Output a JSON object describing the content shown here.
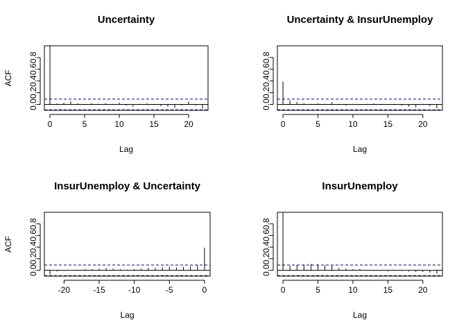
{
  "chart_data": [
    {
      "type": "bar",
      "title": "Uncertainty",
      "xlabel": "Lag",
      "ylabel": "ACF",
      "x": [
        0,
        1,
        2,
        3,
        4,
        5,
        6,
        7,
        8,
        9,
        10,
        11,
        12,
        13,
        14,
        15,
        16,
        17,
        18,
        19,
        20,
        21,
        22
      ],
      "values": [
        1.0,
        0.02,
        0.03,
        0.05,
        0.02,
        -0.01,
        0.02,
        0.01,
        0.02,
        0.01,
        0.03,
        -0.02,
        -0.04,
        0.01,
        0.02,
        -0.01,
        -0.03,
        -0.04,
        -0.06,
        -0.02,
        0.05,
        -0.02,
        -0.07
      ],
      "ci": [
        -0.091,
        0.091
      ],
      "xlim": [
        -0.8,
        22.8
      ],
      "ylim": [
        -0.1,
        1.0
      ],
      "xticks": [
        0,
        5,
        10,
        15,
        20
      ],
      "yticks": [
        "0.0",
        "0.2",
        "0.4",
        "0.6",
        "0.8"
      ]
    },
    {
      "type": "bar",
      "title": "Uncertainty & InsurUnemploy",
      "xlabel": "Lag",
      "ylabel": "",
      "x": [
        0,
        1,
        2,
        3,
        4,
        5,
        6,
        7,
        8,
        9,
        10,
        11,
        12,
        13,
        14,
        15,
        16,
        17,
        18,
        19,
        20,
        21,
        22
      ],
      "values": [
        0.39,
        0.07,
        0.04,
        0.02,
        0.01,
        0.02,
        0.01,
        0.04,
        -0.01,
        -0.02,
        0.01,
        -0.01,
        0.01,
        0.02,
        -0.01,
        0.0,
        -0.01,
        -0.02,
        -0.04,
        -0.05,
        0.01,
        -0.03,
        -0.07
      ],
      "ci": [
        -0.091,
        0.091
      ],
      "xlim": [
        -0.8,
        22.8
      ],
      "ylim": [
        -0.1,
        1.0
      ],
      "xticks": [
        0,
        5,
        10,
        15,
        20
      ],
      "yticks": [
        "0.0",
        "0.2",
        "0.4",
        "0.6",
        "0.8"
      ]
    },
    {
      "type": "bar",
      "title": "InsurUnemploy & Uncertainty",
      "xlabel": "Lag",
      "ylabel": "ACF",
      "x": [
        -22,
        -21,
        -20,
        -19,
        -18,
        -17,
        -16,
        -15,
        -14,
        -13,
        -12,
        -11,
        -10,
        -9,
        -8,
        -7,
        -6,
        -5,
        -4,
        -3,
        -2,
        -1,
        0
      ],
      "values": [
        -0.07,
        -0.02,
        -0.01,
        0.0,
        0.01,
        0.02,
        0.02,
        0.03,
        0.04,
        0.03,
        0.02,
        0.01,
        0.02,
        0.03,
        0.04,
        0.04,
        0.05,
        0.06,
        0.05,
        0.06,
        0.07,
        0.09,
        0.39
      ],
      "ci": [
        -0.091,
        0.091
      ],
      "xlim": [
        -22.8,
        0.8
      ],
      "ylim": [
        -0.1,
        1.0
      ],
      "xticks": [
        -20,
        -15,
        -10,
        -5,
        0
      ],
      "yticks": [
        "0.0",
        "0.2",
        "0.4",
        "0.6",
        "0.8"
      ]
    },
    {
      "type": "bar",
      "title": "InsurUnemploy",
      "xlabel": "Lag",
      "ylabel": "",
      "x": [
        0,
        1,
        2,
        3,
        4,
        5,
        6,
        7,
        8,
        9,
        10,
        11,
        12,
        13,
        14,
        15,
        16,
        17,
        18,
        19,
        20,
        21,
        22
      ],
      "values": [
        1.0,
        0.08,
        0.09,
        0.1,
        0.11,
        0.1,
        0.09,
        0.08,
        0.04,
        0.03,
        0.02,
        0.02,
        0.0,
        -0.01,
        -0.01,
        -0.02,
        -0.01,
        -0.01,
        -0.02,
        -0.03,
        -0.03,
        -0.04,
        -0.06
      ],
      "ci": [
        -0.091,
        0.091
      ],
      "xlim": [
        -0.8,
        22.8
      ],
      "ylim": [
        -0.1,
        1.0
      ],
      "xticks": [
        0,
        5,
        10,
        15,
        20
      ],
      "yticks": [
        "0.0",
        "0.2",
        "0.4",
        "0.6",
        "0.8"
      ]
    }
  ],
  "colors": {
    "ci_line": "#00008b",
    "bars": "#000000",
    "frame": "#000000"
  }
}
